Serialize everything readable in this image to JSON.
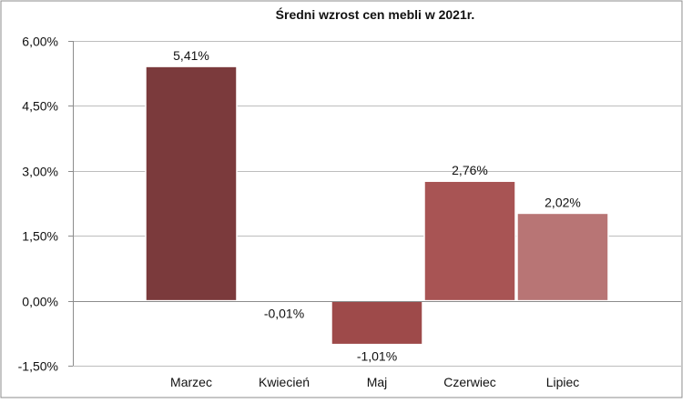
{
  "chart_data": {
    "type": "bar",
    "title": "Średni wzrost cen mebli w 2021r.",
    "xlabel": "",
    "ylabel": "",
    "categories": [
      "Marzec",
      "Kwiecień",
      "Maj",
      "Czerwiec",
      "Lipiec"
    ],
    "values": [
      5.41,
      -0.01,
      -1.01,
      2.76,
      2.02
    ],
    "value_labels": [
      "5,41%",
      "-0,01%",
      "-1,01%",
      "2,76%",
      "2,02%"
    ],
    "bar_colors": [
      "#7b3a3c",
      "#8a3f41",
      "#9e4a4a",
      "#a85454",
      "#b87575"
    ],
    "ylim": [
      -1.5,
      6.0
    ],
    "yticks": [
      -1.5,
      0,
      1.5,
      3.0,
      4.5,
      6.0
    ],
    "ytick_labels": [
      "-1,50%",
      "0,00%",
      "1,50%",
      "3,00%",
      "4,50%",
      "6,00%"
    ],
    "grid": true,
    "legend": "none"
  }
}
